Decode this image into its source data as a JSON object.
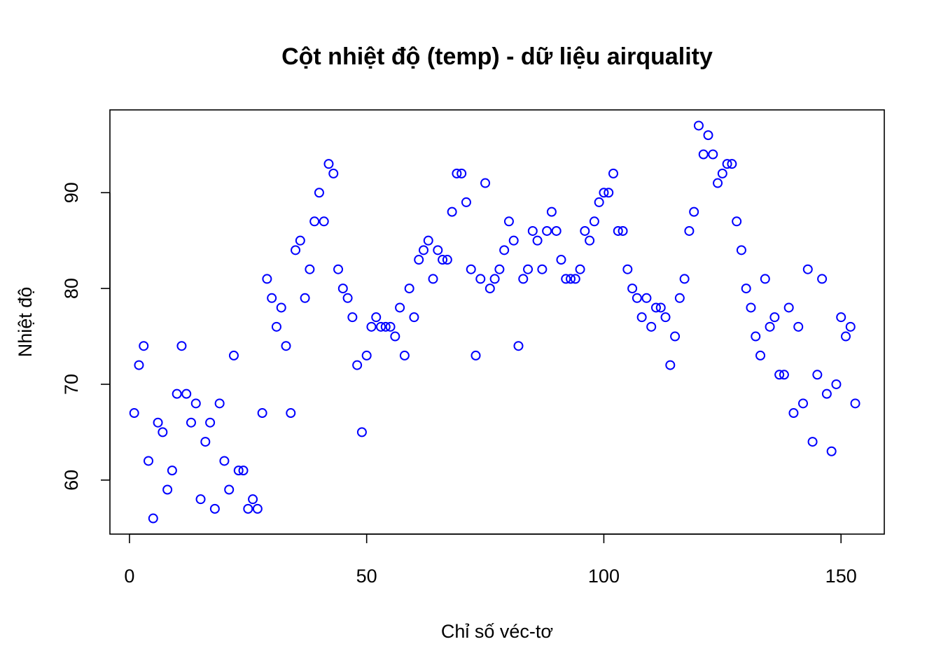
{
  "chart_data": {
    "type": "scatter",
    "title": "Cột nhiệt độ (temp) - dữ liệu airquality",
    "xlabel": "Chỉ số véc-tơ",
    "ylabel": "Nhiệt độ",
    "xlim": [
      -4.12,
      159.12
    ],
    "ylim": [
      54.36,
      98.64
    ],
    "xticks": [
      0,
      50,
      100,
      150
    ],
    "yticks": [
      60,
      70,
      80,
      90
    ],
    "grid": false,
    "legend": "none",
    "marker": "open-circle",
    "point_color": "#0000FF",
    "series": [
      {
        "x": [
          1,
          2,
          3,
          4,
          5,
          6,
          7,
          8,
          9,
          10,
          11,
          12,
          13,
          14,
          15,
          16,
          17,
          18,
          19,
          20,
          21,
          22,
          23,
          24,
          25,
          26,
          27,
          28,
          29,
          30,
          31,
          32,
          33,
          34,
          35,
          36,
          37,
          38,
          39,
          40,
          41,
          42,
          43,
          44,
          45,
          46,
          47,
          48,
          49,
          50,
          51,
          52,
          53,
          54,
          55,
          56,
          57,
          58,
          59,
          60,
          61,
          62,
          63,
          64,
          65,
          66,
          67,
          68,
          69,
          70,
          71,
          72,
          73,
          74,
          75,
          76,
          77,
          78,
          79,
          80,
          81,
          82,
          83,
          84,
          85,
          86,
          87,
          88,
          89,
          90,
          91,
          92,
          93,
          94,
          95,
          96,
          97,
          98,
          99,
          100,
          101,
          102,
          103,
          104,
          105,
          106,
          107,
          108,
          109,
          110,
          111,
          112,
          113,
          114,
          115,
          116,
          117,
          118,
          119,
          120,
          121,
          122,
          123,
          124,
          125,
          126,
          127,
          128,
          129,
          130,
          131,
          132,
          133,
          134,
          135,
          136,
          137,
          138,
          139,
          140,
          141,
          142,
          143,
          144,
          145,
          146,
          147,
          148,
          149,
          150,
          151,
          152,
          153
        ],
        "y": [
          67,
          72,
          74,
          62,
          56,
          66,
          65,
          59,
          61,
          69,
          74,
          69,
          66,
          68,
          58,
          64,
          66,
          57,
          68,
          62,
          59,
          73,
          61,
          61,
          57,
          58,
          57,
          67,
          81,
          79,
          76,
          78,
          74,
          67,
          84,
          85,
          79,
          82,
          87,
          90,
          87,
          93,
          92,
          82,
          80,
          79,
          77,
          72,
          65,
          73,
          76,
          77,
          76,
          76,
          76,
          75,
          78,
          73,
          80,
          77,
          83,
          84,
          85,
          81,
          84,
          83,
          83,
          88,
          92,
          92,
          89,
          82,
          73,
          81,
          91,
          80,
          81,
          82,
          84,
          87,
          85,
          74,
          81,
          82,
          86,
          85,
          82,
          86,
          88,
          86,
          83,
          81,
          81,
          81,
          82,
          86,
          85,
          87,
          89,
          90,
          90,
          92,
          86,
          86,
          82,
          80,
          79,
          77,
          79,
          76,
          78,
          78,
          77,
          72,
          75,
          79,
          81,
          86,
          88,
          97,
          94,
          96,
          94,
          91,
          92,
          93,
          93,
          87,
          84,
          80,
          78,
          75,
          73,
          81,
          76,
          77,
          71,
          71,
          78,
          67,
          76,
          68,
          82,
          64,
          71,
          81,
          69,
          63,
          70,
          77,
          75,
          76,
          68
        ]
      }
    ]
  }
}
